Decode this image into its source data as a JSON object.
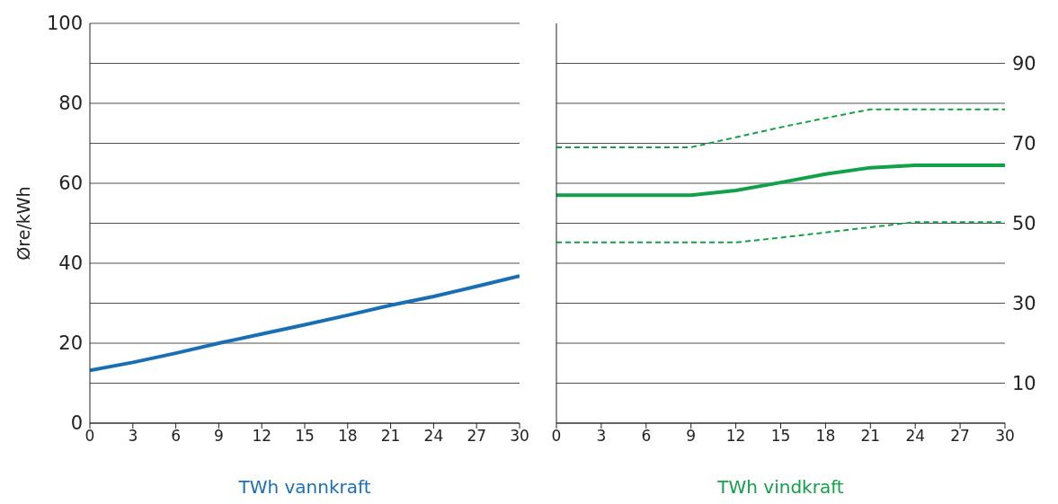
{
  "chart_data": [
    {
      "type": "line",
      "ylabel": "Øre/kWh",
      "xlabel": "TWh vannkraft",
      "x": [
        0,
        3,
        6,
        9,
        12,
        15,
        18,
        21,
        24,
        27,
        30
      ],
      "xlim": [
        0,
        30
      ],
      "xticks": [
        0,
        3,
        6,
        9,
        12,
        15,
        18,
        21,
        24,
        27,
        30
      ],
      "ylim": [
        0,
        100
      ],
      "yticks": [
        0,
        {
          "value": 10,
          "label": null
        },
        20,
        {
          "value": 30,
          "label": null
        },
        40,
        {
          "value": 50,
          "label": null
        },
        60,
        {
          "value": 70,
          "label": null
        },
        80,
        {
          "value": 90,
          "label": null
        },
        100
      ],
      "grid": "y",
      "series": [
        {
          "color": "#1a6fb4",
          "values": [
            13.2,
            15.2,
            17.5,
            20,
            22.3,
            24.6,
            27,
            29.5,
            31.7,
            34.2,
            36.8
          ]
        }
      ]
    },
    {
      "type": "line",
      "xlabel": "TWh vindkraft",
      "x": [
        0,
        9,
        12,
        15,
        18,
        21,
        24,
        30
      ],
      "xlim": [
        0,
        30
      ],
      "xticks": [
        0,
        3,
        6,
        9,
        12,
        15,
        18,
        21,
        24,
        27,
        30
      ],
      "y2lim": [
        0,
        100
      ],
      "y2ticks": [
        {
          "value": 0,
          "label": null
        },
        10,
        {
          "value": 20,
          "label": null
        },
        30,
        {
          "value": 40,
          "label": null
        },
        50,
        {
          "value": 60,
          "label": null
        },
        70,
        {
          "value": 80,
          "label": null
        },
        90
      ],
      "grid": "y",
      "series": [
        {
          "color": "#12a14a",
          "axis": "y2",
          "line_style": "solid",
          "values": [
            57,
            57,
            58.2,
            60.2,
            62.3,
            63.9,
            64.5,
            64.5
          ]
        },
        {
          "color": "#12a14a",
          "axis": "y2",
          "line_style": "dashed",
          "values": [
            69,
            69,
            71.5,
            74,
            76.3,
            78.5,
            78.5,
            78.5
          ]
        },
        {
          "color": "#12a14a",
          "axis": "y2",
          "line_style": "dashed",
          "values": [
            45.2,
            45.2,
            45.2,
            46.4,
            47.7,
            49,
            50.3,
            50.3
          ]
        }
      ]
    }
  ]
}
